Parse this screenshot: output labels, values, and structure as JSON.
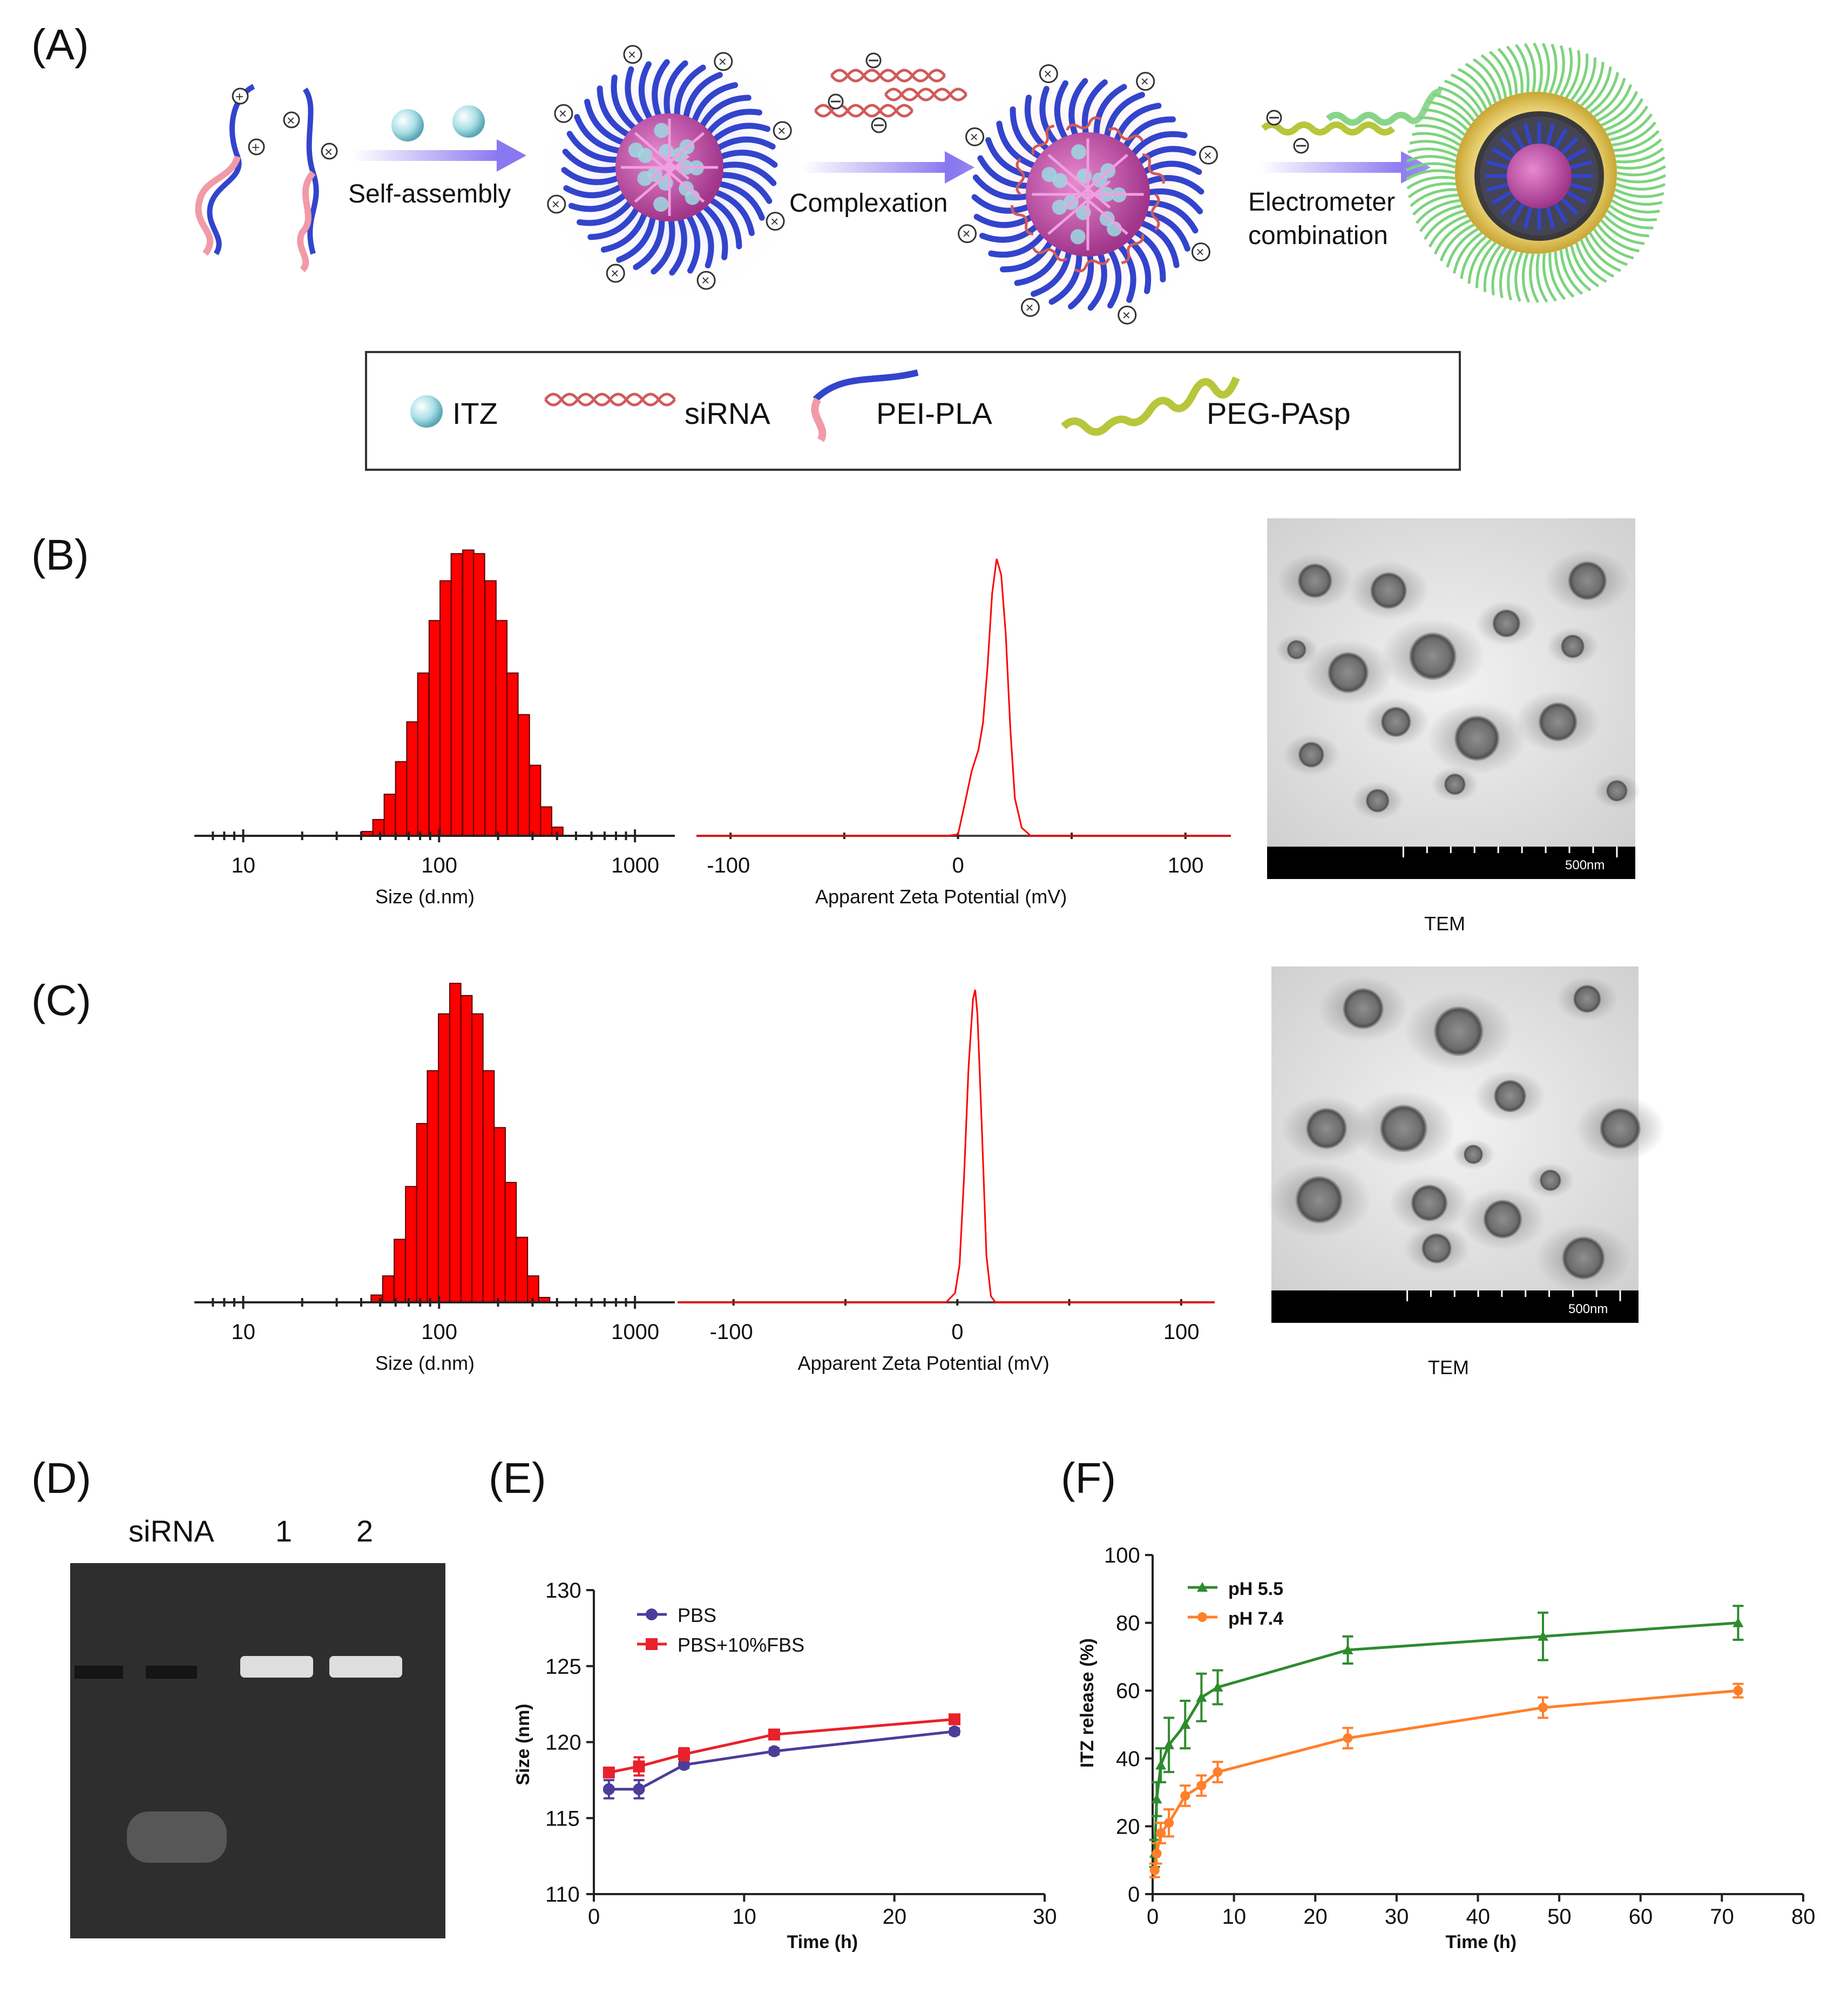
{
  "panels": {
    "A": "(A)",
    "B": "(B)",
    "C": "(C)",
    "D": "(D)",
    "E": "(E)",
    "F": "(F)"
  },
  "schematic": {
    "steps": [
      "Self-assembly",
      "Complexation",
      "Electrometer",
      "combination"
    ],
    "legend": [
      "ITZ",
      "siRNA",
      "PEI-PLA",
      "PEG-PAsp"
    ],
    "colors": {
      "peg": "#7ed27e",
      "pei": "#3344cc",
      "core": "#cc55aa",
      "itz": "#9ed8e0",
      "shell": "#e8cc55",
      "arrow": "#8877ee"
    }
  },
  "size_axis_label": "Size (d.nm)",
  "zeta_axis_label": "Apparent Zeta Potential (mV)",
  "tem_label": "TEM",
  "scale_bar": "500nm",
  "gel": {
    "lanes": [
      "siRNA",
      "1",
      "2"
    ],
    "colors": {
      "bg": "#2e2e2e",
      "band": "#e8e8e8"
    }
  },
  "chart_data": [
    {
      "type": "bar",
      "panel": "B",
      "xscale": "log",
      "xlabel": "Size (d.nm)",
      "xticks": [
        10,
        100,
        1000
      ],
      "xlim": [
        6,
        1500
      ],
      "x": [
        43,
        49,
        56,
        64,
        73,
        83,
        95,
        108,
        123,
        141,
        160,
        183,
        208,
        237,
        271,
        309,
        352,
        402
      ],
      "values": [
        1.2,
        4.5,
        11.5,
        20.5,
        31.5,
        45,
        59.5,
        70.5,
        78,
        79,
        78,
        70.5,
        59.5,
        45,
        33.5,
        19.5,
        8,
        2.4
      ],
      "color": "#ff0000"
    },
    {
      "type": "line",
      "panel": "B",
      "xlabel": "Apparent Zeta Potential (mV)",
      "xticks": [
        -100,
        0,
        100
      ],
      "xlim": [
        -115,
        120
      ],
      "x": [
        -115,
        -5,
        0,
        3,
        6,
        9,
        11,
        13,
        15,
        17,
        19,
        21,
        23,
        25,
        28,
        32,
        120
      ],
      "y": [
        0,
        0,
        0.5,
        12,
        24,
        32,
        42,
        63,
        90,
        103,
        97,
        75,
        40,
        14,
        3,
        0,
        0
      ],
      "color": "#ff0000"
    },
    {
      "type": "bar",
      "panel": "C",
      "xscale": "log",
      "xlabel": "Size (d.nm)",
      "xticks": [
        10,
        100,
        1000
      ],
      "xlim": [
        6,
        1500
      ],
      "x": [
        48,
        55,
        63,
        72,
        82,
        93,
        106,
        121,
        138,
        157,
        179,
        204,
        232,
        265,
        302,
        344
      ],
      "values": [
        1.8,
        6.5,
        15.5,
        28.5,
        44,
        57,
        71,
        78.5,
        75.5,
        71,
        57,
        43,
        29.5,
        16,
        6.5,
        1.2
      ],
      "color": "#ff0000"
    },
    {
      "type": "line",
      "panel": "C",
      "xlabel": "Apparent Zeta Potential (mV)",
      "xticks": [
        -100,
        0,
        100
      ],
      "xlim": [
        -125,
        115
      ],
      "x": [
        -125,
        -5,
        -1,
        1,
        3,
        5,
        7,
        8,
        9,
        11,
        13,
        15,
        17,
        115
      ],
      "y": [
        0,
        0,
        3,
        12,
        40,
        75,
        97,
        100,
        92,
        55,
        15,
        2,
        0,
        0
      ],
      "color": "#ff0000"
    },
    {
      "type": "line",
      "panel": "E",
      "xlabel": "Time (h)",
      "ylabel": "Size (nm)",
      "xlim": [
        0,
        30
      ],
      "ylim": [
        110,
        130
      ],
      "xticks": [
        0,
        10,
        20,
        30
      ],
      "yticks": [
        110,
        115,
        120,
        125,
        130
      ],
      "legend_position": "top-left",
      "series": [
        {
          "name": "PBS",
          "color": "#4b3d99",
          "x": [
            1,
            3,
            6,
            12,
            24
          ],
          "y": [
            116.9,
            116.9,
            118.5,
            119.4,
            120.7
          ],
          "err": [
            0.6,
            0.6,
            0.2,
            0.2,
            0.2
          ]
        },
        {
          "name": "PBS+10%FBS",
          "color": "#e8212b",
          "x": [
            1,
            3,
            6,
            12,
            24
          ],
          "y": [
            118.0,
            118.4,
            119.2,
            120.5,
            121.5
          ],
          "err": [
            0.3,
            0.6,
            0.4,
            0.2,
            0.2
          ]
        }
      ]
    },
    {
      "type": "line",
      "panel": "F",
      "xlabel": "Time (h)",
      "ylabel": "ITZ release (%)",
      "xlim": [
        0,
        80
      ],
      "ylim": [
        0,
        100
      ],
      "xticks": [
        0,
        10,
        20,
        30,
        40,
        50,
        60,
        70,
        80
      ],
      "yticks": [
        0,
        20,
        40,
        60,
        80,
        100
      ],
      "legend_position": "top-left",
      "series": [
        {
          "name": "pH 5.5",
          "color": "#2e8b2e",
          "x": [
            0.25,
            0.5,
            1,
            2,
            4,
            6,
            8,
            24,
            48,
            72
          ],
          "y": [
            12,
            28,
            38,
            44,
            50,
            58,
            61,
            72,
            76,
            80
          ],
          "err": [
            4,
            5,
            5,
            8,
            7,
            7,
            5,
            4,
            7,
            5
          ]
        },
        {
          "name": "pH 7.4",
          "color": "#ff7f2a",
          "x": [
            0.25,
            0.5,
            1,
            2,
            4,
            6,
            8,
            24,
            48,
            72
          ],
          "y": [
            7,
            12,
            18,
            21,
            29,
            32,
            36,
            46,
            55,
            60
          ],
          "err": [
            2,
            3,
            3,
            4,
            3,
            3,
            3,
            3,
            3,
            2
          ]
        }
      ]
    }
  ]
}
